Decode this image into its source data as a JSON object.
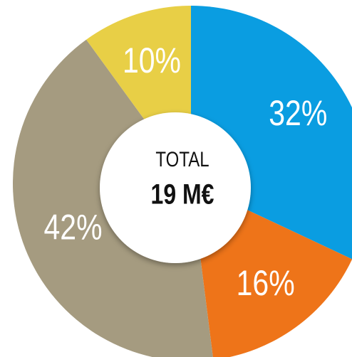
{
  "chart_data": {
    "type": "donut",
    "center_title": "TOTAL",
    "center_value": "19 M€",
    "categories": [
      null,
      null,
      null,
      null
    ],
    "values": [
      32,
      16,
      42,
      10
    ],
    "value_labels": [
      "32%",
      "16%",
      "42%",
      "10%"
    ],
    "colors": [
      "#0a9de1",
      "#ee7419",
      "#a59b80",
      "#e8cf46"
    ]
  }
}
